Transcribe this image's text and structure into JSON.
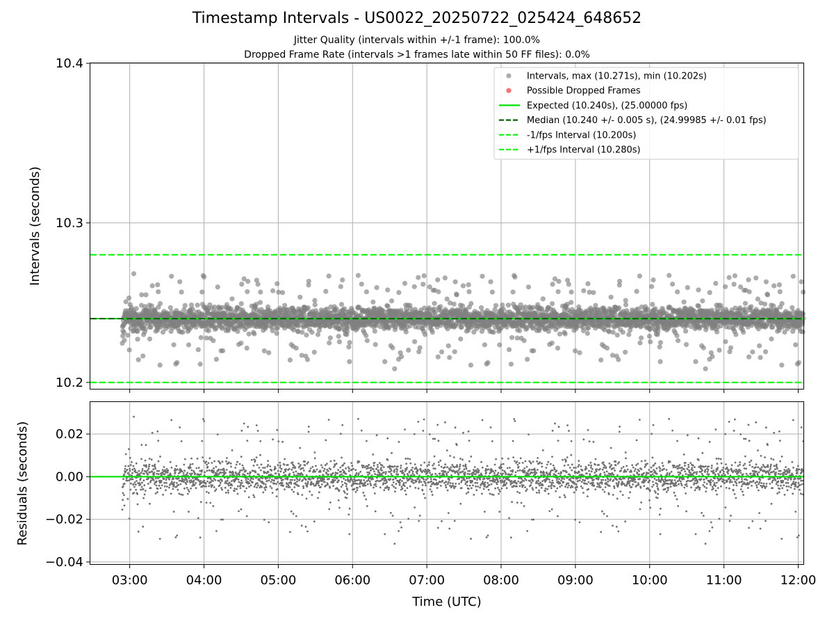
{
  "chart_data": [
    {
      "type": "scatter",
      "title": "Timestamp Intervals - US0022_20250722_025424_648652",
      "subtitles": [
        "Jitter Quality (intervals within +/-1 frame): 100.0%",
        "Dropped Frame Rate (intervals >1 frames late within 50 FF files): 0.0%"
      ],
      "ylabel": "Intervals (seconds)",
      "ylim": [
        10.196,
        10.4
      ],
      "yticks": [
        "10.2",
        "10.3",
        "10.4"
      ],
      "ytick_values": [
        10.2,
        10.3,
        10.4
      ],
      "grid": true,
      "legend_position": "top-right",
      "legend": [
        "Intervals, max (10.271s), min (10.202s)",
        "Possible Dropped Frames",
        "Expected (10.240s), (25.00000 fps)",
        "Median (10.240 +/- 0.005 s), (24.99985 +/- 0.01 fps)",
        "-1/fps Interval (10.200s)",
        "+1/fps Interval (10.280s)"
      ],
      "reference_lines": {
        "expected": 10.24,
        "median": 10.24,
        "minus_one_fps": 10.2,
        "plus_one_fps": 10.28
      },
      "intervals_max": 10.271,
      "intervals_min": 10.202,
      "intervals_median": 10.24,
      "intervals_spread": 0.005,
      "dropped_frames": []
    },
    {
      "type": "scatter",
      "xlabel": "Time (UTC)",
      "ylabel": "Residuals (seconds)",
      "ylim": [
        -0.041,
        0.035
      ],
      "yticks": [
        "0.02",
        "0.00",
        "−0.02",
        "−0.04"
      ],
      "ytick_values": [
        0.02,
        0.0,
        -0.02,
        -0.04
      ],
      "grid": true,
      "zero_line": 0.0
    }
  ],
  "x_axis": {
    "range_hours": [
      2.47,
      12.07
    ],
    "data_start_hour": 2.9,
    "data_end_hour": 12.07,
    "ticks": [
      "03:00",
      "04:00",
      "05:00",
      "06:00",
      "07:00",
      "08:00",
      "09:00",
      "10:00",
      "11:00",
      "12:00"
    ],
    "tick_hours": [
      3,
      4,
      5,
      6,
      7,
      8,
      9,
      10,
      11,
      12
    ]
  },
  "colors": {
    "points_top": "#808080",
    "dropped": "#ff4d4d",
    "expected": "#00e000",
    "median": "#006400",
    "fps_lines": "#00ff00",
    "points_bottom": "#707070"
  }
}
